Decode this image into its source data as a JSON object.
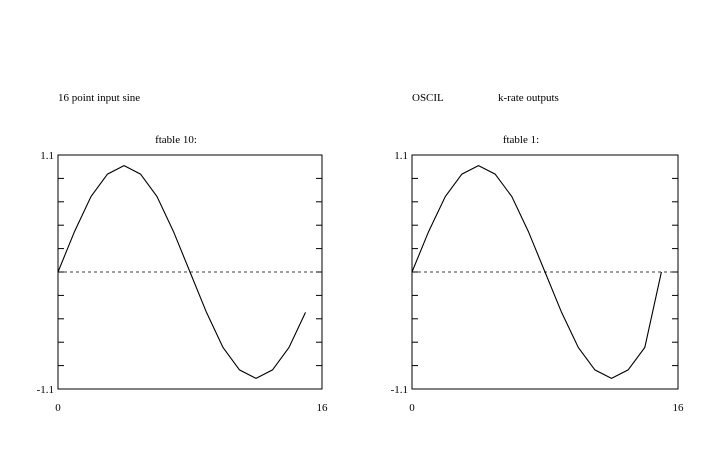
{
  "header": {
    "left_caption": "16 point input sine",
    "middle_caption": "OSCIL",
    "right_caption": "k-rate outputs"
  },
  "chart_data": [
    {
      "type": "line",
      "title": "ftable 10:",
      "xlim": [
        0,
        16
      ],
      "ylim": [
        -1.1,
        1.1
      ],
      "x_tick_labels": [
        "0",
        "16"
      ],
      "y_tick_labels": [
        "1.1",
        "-1.1"
      ],
      "zero_line": "dashed",
      "series": [
        {
          "x": [
            0,
            1,
            2,
            3,
            4,
            5,
            6,
            7,
            8,
            9,
            10,
            11,
            12,
            13,
            14,
            15
          ],
          "values": [
            0,
            0.38,
            0.71,
            0.92,
            1.0,
            0.92,
            0.71,
            0.38,
            0,
            -0.38,
            -0.71,
            -0.92,
            -1.0,
            -0.92,
            -0.71,
            -0.38
          ]
        }
      ]
    },
    {
      "type": "line",
      "title": "ftable 1:",
      "xlim": [
        0,
        16
      ],
      "ylim": [
        -1.1,
        1.1
      ],
      "x_tick_labels": [
        "0",
        "16"
      ],
      "y_tick_labels": [
        "1.1",
        "-1.1"
      ],
      "zero_line": "dashed",
      "series": [
        {
          "x": [
            0,
            1,
            2,
            3,
            4,
            5,
            6,
            7,
            8,
            9,
            10,
            11,
            12,
            13,
            14,
            15
          ],
          "values": [
            0,
            0.38,
            0.71,
            0.92,
            1.0,
            0.92,
            0.71,
            0.38,
            0,
            -0.38,
            -0.71,
            -0.92,
            -1.0,
            -0.92,
            -0.71,
            0
          ]
        }
      ]
    }
  ]
}
